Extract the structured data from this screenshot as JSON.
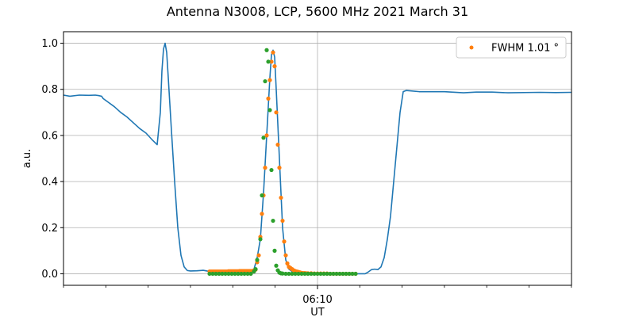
{
  "chart_data": {
    "type": "line",
    "title": "Antenna N3008, LCP, 5600 MHz 2021 March 31",
    "xlabel": "UT",
    "ylabel": "a.u.",
    "x_tick_labels": [
      {
        "t": 80,
        "label": "06:10"
      }
    ],
    "x_domain_minutes_since_0600": [
      0,
      120
    ],
    "ylim": [
      -0.05,
      1.05
    ],
    "yticks": [
      0.0,
      0.2,
      0.4,
      0.6,
      0.8,
      1.0
    ],
    "ytick_labels": [
      "0.0",
      "0.2",
      "0.4",
      "0.6",
      "0.8",
      "1.0"
    ],
    "grid": true,
    "legend_position": "top-right",
    "colors": {
      "line": "#1f77b4",
      "orange": "#ff7f0e",
      "green": "#2ca02c"
    },
    "series": [
      {
        "kind": "line",
        "color": "#1f77b4",
        "points": [
          [
            0,
            0.775
          ],
          [
            2,
            0.77
          ],
          [
            5,
            0.775
          ],
          [
            8,
            0.774
          ],
          [
            10,
            0.775
          ],
          [
            11,
            0.773
          ],
          [
            12,
            0.77
          ],
          [
            12.5,
            0.76
          ],
          [
            14,
            0.745
          ],
          [
            16,
            0.725
          ],
          [
            18,
            0.7
          ],
          [
            20,
            0.68
          ],
          [
            22,
            0.655
          ],
          [
            24,
            0.63
          ],
          [
            26,
            0.61
          ],
          [
            27,
            0.595
          ],
          [
            28,
            0.58
          ],
          [
            29.5,
            0.56
          ],
          [
            30.5,
            0.7
          ],
          [
            31,
            0.88
          ],
          [
            31.5,
            0.975
          ],
          [
            32,
            1.0
          ],
          [
            32.5,
            0.96
          ],
          [
            33,
            0.85
          ],
          [
            34,
            0.62
          ],
          [
            35,
            0.4
          ],
          [
            36,
            0.2
          ],
          [
            37,
            0.08
          ],
          [
            38,
            0.03
          ],
          [
            39,
            0.014
          ],
          [
            40,
            0.012
          ],
          [
            42,
            0.013
          ],
          [
            44,
            0.015
          ],
          [
            46,
            0.01
          ],
          [
            48,
            0.01
          ],
          [
            52,
            0.008
          ],
          [
            56,
            0.005
          ],
          [
            57,
            0.006
          ],
          [
            58,
            0.01
          ],
          [
            60,
            0.02
          ],
          [
            61,
            0.07
          ],
          [
            62,
            0.15
          ],
          [
            63,
            0.35
          ],
          [
            64,
            0.6
          ],
          [
            65,
            0.85
          ],
          [
            65.5,
            0.95
          ],
          [
            66,
            0.97
          ],
          [
            66.5,
            0.94
          ],
          [
            67,
            0.8
          ],
          [
            68,
            0.5
          ],
          [
            69,
            0.2
          ],
          [
            70,
            0.06
          ],
          [
            71,
            0.02
          ],
          [
            72,
            0.01
          ],
          [
            74,
            0.005
          ],
          [
            78,
            0.003
          ],
          [
            82,
            0.002
          ],
          [
            86,
            0.003
          ],
          [
            90,
            0.002
          ],
          [
            91,
            0.0
          ],
          [
            92,
            0.0
          ],
          [
            94,
            0.0
          ],
          [
            95,
            0.0
          ],
          [
            96,
            0.008
          ],
          [
            97,
            0.018
          ],
          [
            98,
            0.02
          ],
          [
            99,
            0.018
          ],
          [
            100,
            0.03
          ],
          [
            101,
            0.07
          ],
          [
            102,
            0.15
          ],
          [
            103,
            0.25
          ],
          [
            104,
            0.4
          ],
          [
            105,
            0.55
          ],
          [
            106,
            0.7
          ],
          [
            107,
            0.79
          ],
          [
            108,
            0.795
          ],
          [
            112,
            0.79
          ],
          [
            120,
            0.79
          ],
          [
            126,
            0.785
          ],
          [
            130,
            0.788
          ],
          [
            135,
            0.788
          ],
          [
            140,
            0.785
          ],
          [
            150,
            0.787
          ],
          [
            155,
            0.786
          ],
          [
            160,
            0.787
          ]
        ]
      },
      {
        "kind": "scatter",
        "name": "FWHM 1.01 °",
        "color": "#ff7f0e",
        "points": [
          [
            46,
            0.01
          ],
          [
            46.5,
            0.01
          ],
          [
            47,
            0.01
          ],
          [
            47.5,
            0.01
          ],
          [
            48,
            0.01
          ],
          [
            48.5,
            0.01
          ],
          [
            49,
            0.01
          ],
          [
            49.5,
            0.01
          ],
          [
            50,
            0.01
          ],
          [
            50.5,
            0.01
          ],
          [
            51,
            0.01
          ],
          [
            51.5,
            0.01
          ],
          [
            52,
            0.011
          ],
          [
            52.5,
            0.011
          ],
          [
            53,
            0.011
          ],
          [
            53.5,
            0.011
          ],
          [
            54,
            0.011
          ],
          [
            54.5,
            0.011
          ],
          [
            55,
            0.011
          ],
          [
            55.5,
            0.012
          ],
          [
            56,
            0.012
          ],
          [
            56.5,
            0.012
          ],
          [
            57,
            0.012
          ],
          [
            57.5,
            0.012
          ],
          [
            58,
            0.012
          ],
          [
            58.5,
            0.012
          ],
          [
            59,
            0.012
          ],
          [
            59.5,
            0.012
          ],
          [
            60,
            0.015
          ],
          [
            60.5,
            0.018
          ],
          [
            61,
            0.05
          ],
          [
            61.5,
            0.08
          ],
          [
            62,
            0.16
          ],
          [
            62.5,
            0.26
          ],
          [
            63,
            0.34
          ],
          [
            63.5,
            0.46
          ],
          [
            64,
            0.6
          ],
          [
            64.5,
            0.76
          ],
          [
            65,
            0.84
          ],
          [
            65.5,
            0.92
          ],
          [
            66,
            0.96
          ],
          [
            66.5,
            0.9
          ],
          [
            67,
            0.7
          ],
          [
            67.5,
            0.56
          ],
          [
            68,
            0.46
          ],
          [
            68.5,
            0.33
          ],
          [
            69,
            0.23
          ],
          [
            69.5,
            0.14
          ],
          [
            70,
            0.08
          ],
          [
            70.5,
            0.045
          ],
          [
            71,
            0.03
          ],
          [
            71.5,
            0.025
          ],
          [
            72,
            0.02
          ],
          [
            72.5,
            0.015
          ],
          [
            73,
            0.012
          ],
          [
            73.5,
            0.01
          ],
          [
            74,
            0.008
          ],
          [
            74.5,
            0.006
          ],
          [
            75,
            0.004
          ],
          [
            75.5,
            0.003
          ],
          [
            76,
            0.003
          ],
          [
            76.5,
            0.002
          ],
          [
            77,
            0.002
          ],
          [
            78,
            0.002
          ],
          [
            79,
            0.001
          ],
          [
            80,
            0.001
          ],
          [
            81,
            0.001
          ],
          [
            82,
            0.001
          ],
          [
            83,
            0.001
          ],
          [
            84,
            0.0
          ],
          [
            85,
            0.0
          ],
          [
            86,
            0.0
          ],
          [
            87,
            0.0
          ],
          [
            88,
            0.0
          ],
          [
            89,
            0.0
          ],
          [
            90,
            0.0
          ],
          [
            91,
            0.0
          ],
          [
            92,
            0.0
          ]
        ]
      },
      {
        "kind": "scatter",
        "color": "#2ca02c",
        "points": [
          [
            46,
            0.0
          ],
          [
            47,
            0.0
          ],
          [
            48,
            0.0
          ],
          [
            49,
            0.0
          ],
          [
            50,
            0.0
          ],
          [
            51,
            0.0
          ],
          [
            52,
            0.0
          ],
          [
            53,
            0.0
          ],
          [
            54,
            0.0
          ],
          [
            55,
            0.0
          ],
          [
            56,
            0.0
          ],
          [
            57,
            0.0
          ],
          [
            58,
            0.0
          ],
          [
            59,
            0.0
          ],
          [
            60,
            0.01
          ],
          [
            60.5,
            0.02
          ],
          [
            61,
            0.06
          ],
          [
            62,
            0.15
          ],
          [
            62.5,
            0.34
          ],
          [
            63,
            0.59
          ],
          [
            63.5,
            0.835
          ],
          [
            64,
            0.97
          ],
          [
            64.5,
            0.92
          ],
          [
            65,
            0.71
          ],
          [
            65.5,
            0.45
          ],
          [
            66,
            0.23
          ],
          [
            66.5,
            0.1
          ],
          [
            67,
            0.035
          ],
          [
            67.5,
            0.015
          ],
          [
            68,
            0.005
          ],
          [
            68.5,
            0.002
          ],
          [
            69,
            0.001
          ],
          [
            70,
            0.0
          ],
          [
            71,
            0.0
          ],
          [
            72,
            0.0
          ],
          [
            73,
            0.0
          ],
          [
            74,
            0.0
          ],
          [
            75,
            0.0
          ],
          [
            76,
            0.0
          ],
          [
            77,
            0.0
          ],
          [
            78,
            0.0
          ],
          [
            79,
            0.0
          ],
          [
            80,
            0.0
          ],
          [
            81,
            0.0
          ],
          [
            82,
            0.0
          ],
          [
            83,
            0.0
          ],
          [
            84,
            0.0
          ],
          [
            85,
            0.0
          ],
          [
            86,
            0.0
          ],
          [
            87,
            0.0
          ],
          [
            88,
            0.0
          ],
          [
            89,
            0.0
          ],
          [
            90,
            0.0
          ],
          [
            91,
            0.0
          ],
          [
            92,
            0.0
          ]
        ]
      }
    ]
  }
}
